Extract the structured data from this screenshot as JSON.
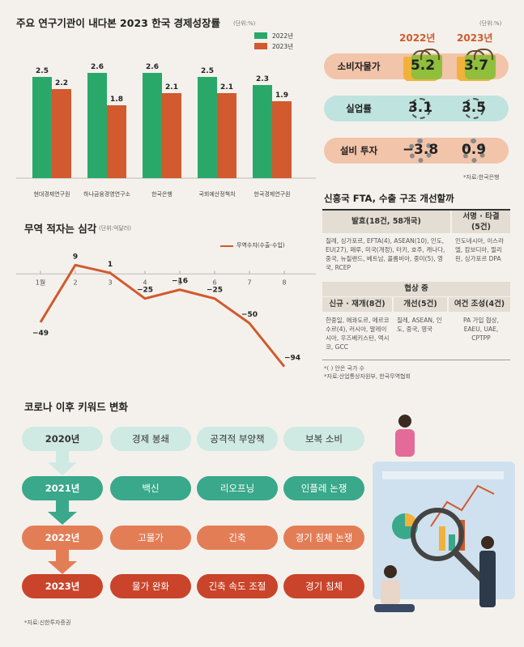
{
  "chart_data": [
    {
      "type": "bar",
      "title": "주요 연구기관이 내다본 2023 한국 경제성장률",
      "unit": "(단위:%)",
      "categories": [
        "현대경제연구원",
        "하나금융경영연구소",
        "한국은행",
        "국회예산정책처",
        "한국경제연구원"
      ],
      "series": [
        {
          "name": "2022년",
          "values": [
            2.5,
            2.6,
            2.6,
            2.5,
            2.3
          ],
          "color": "#2aa86a"
        },
        {
          "name": "2023년",
          "values": [
            2.2,
            1.8,
            2.1,
            2.1,
            1.9
          ],
          "color": "#d15a2f"
        }
      ],
      "ylim": [
        0,
        3.0
      ],
      "legend": "top-right"
    },
    {
      "type": "line",
      "title": "무역 적자는 심각",
      "unit": "(단위:억달러)",
      "series_name": "무역수지(수출-수입)",
      "x": [
        "1월",
        "2",
        "3",
        "4",
        "5",
        "6",
        "7",
        "8"
      ],
      "values": [
        -49,
        9,
        1,
        -25,
        -16,
        -25,
        -50,
        -94
      ],
      "ylim": [
        -100,
        15
      ],
      "color": "#d15a2f"
    }
  ],
  "indicators": {
    "unit": "(단위:%)",
    "year_2022": "2022년",
    "year_2023": "2023년",
    "rows": [
      {
        "label": "소비자물가",
        "v2022": "5.2",
        "v2023": "3.7"
      },
      {
        "label": "실업률",
        "v2022": "3.1",
        "v2023": "3.5"
      },
      {
        "label": "설비 투자",
        "v2022": "−3.8",
        "v2023": "0.9"
      }
    ],
    "source": "*자료:한국은행"
  },
  "fta": {
    "title": "신흥국 FTA, 수출 구조 개선할까",
    "h_effect": "발효(18건, 58개국)",
    "effect_list": "칠레, 싱가포르, EFTA(4), ASEAN(10), 인도, EU(27), 페루, 미국(개정), 터키, 호주, 캐나다, 중국, 뉴질랜드, 베트남, 콜롬비아, 중미(5), 영국, RCEP",
    "h_sign": "서명 · 타결 (5건)",
    "sign_list": "인도네시아, 이스라엘, 캄보디아, 필리핀, 싱가포르 DPA",
    "h_nego": "협상 중",
    "h_new": "신규 · 재개(8건)",
    "new_list": "한중일, 에콰도르, 메르코수르(4), 러시아, 말레이시아, 우즈베키스탄, 멕시코, GCC",
    "h_improve": "개선(5건)",
    "improve_list": "칠레, ASEAN, 인도, 중국, 영국",
    "h_env": "여건 조성(4건)",
    "env_list": "PA 가입 협상, EAEU, UAE, CPTPP",
    "note1": "*( ) 안은 국가 수",
    "note2": "*자료:산업통상자원부, 한국무역협회"
  },
  "keywords": {
    "title": "코로나 이후 키워드 변화",
    "rows": [
      {
        "year": "2020년",
        "items": [
          "경제 봉쇄",
          "공격적 부양책",
          "보복 소비"
        ]
      },
      {
        "year": "2021년",
        "items": [
          "백신",
          "리오프닝",
          "인플레 논쟁"
        ]
      },
      {
        "year": "2022년",
        "items": [
          "고물가",
          "긴축",
          "경기 침체 논쟁"
        ]
      },
      {
        "year": "2023년",
        "items": [
          "물가 완화",
          "긴축 속도 조절",
          "경기 침체"
        ]
      }
    ],
    "source": "*자료:신한투자증권"
  }
}
